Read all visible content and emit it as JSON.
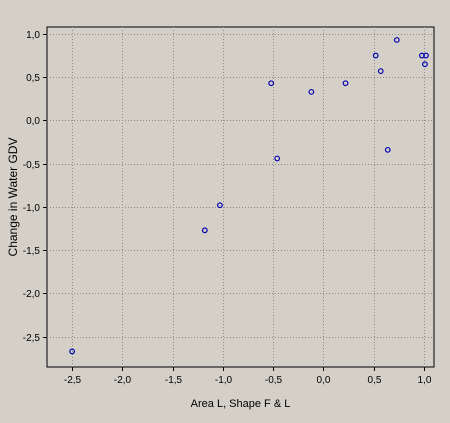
{
  "chart_data": {
    "type": "scatter",
    "title": "",
    "xlabel": "Area L, Shape F & L",
    "ylabel": "Change in Water GDV",
    "xlim": [
      -2.75,
      1.1
    ],
    "ylim": [
      -2.85,
      1.08
    ],
    "xticks": [
      -2.5,
      -2.0,
      -1.5,
      -1.0,
      -0.5,
      0.0,
      0.5,
      1.0
    ],
    "yticks": [
      1.0,
      0.5,
      0.0,
      -0.5,
      -1.0,
      -1.5,
      -2.0,
      -2.5
    ],
    "xtick_labels": [
      "-2,5",
      "-2,0",
      "-1,5",
      "-1,0",
      "-0,5",
      "0,0",
      "0,5",
      "1,0"
    ],
    "ytick_labels": [
      "1,0",
      "0,5",
      "0,0",
      "-0,5",
      "-1,0",
      "-1,5",
      "-2,0",
      "-2,5"
    ],
    "grid": true,
    "legend": "none",
    "marker": "hollow-circle",
    "colors": {
      "background": "#d4d0c8",
      "marker": "#0000b4",
      "grid": "#8c8c8c",
      "axis": "#000000"
    },
    "points": [
      {
        "x": -2.5,
        "y": -2.67
      },
      {
        "x": -1.18,
        "y": -1.27
      },
      {
        "x": -1.03,
        "y": -0.98
      },
      {
        "x": -0.52,
        "y": 0.43
      },
      {
        "x": -0.46,
        "y": -0.44
      },
      {
        "x": -0.12,
        "y": 0.33
      },
      {
        "x": 0.22,
        "y": 0.43
      },
      {
        "x": 0.52,
        "y": 0.75
      },
      {
        "x": 0.57,
        "y": 0.57
      },
      {
        "x": 0.64,
        "y": -0.34
      },
      {
        "x": 0.73,
        "y": 0.93
      },
      {
        "x": 0.98,
        "y": 0.75
      },
      {
        "x": 1.01,
        "y": 0.65
      },
      {
        "x": 1.02,
        "y": 0.75
      }
    ]
  }
}
